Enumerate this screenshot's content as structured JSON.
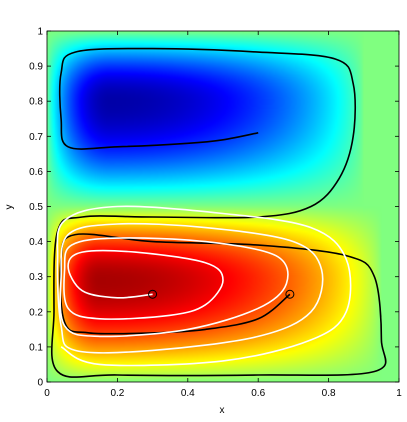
{
  "chart_data": {
    "type": "heatmap",
    "title": "",
    "xlabel": "x",
    "ylabel": "y",
    "xlim": [
      0,
      1
    ],
    "ylim": [
      0,
      1
    ],
    "x_ticks": [
      "0",
      "0.2",
      "0.4",
      "0.6",
      "0.8",
      "1"
    ],
    "y_ticks": [
      "0",
      "0.1",
      "0.2",
      "0.3",
      "0.4",
      "0.5",
      "0.6",
      "0.7",
      "0.8",
      "0.9",
      "1"
    ],
    "colormap": "jet",
    "grid": false,
    "field": {
      "positive_cell": {
        "center": [
          0.15,
          0.29
        ],
        "extent": [
          0.0,
          0.95,
          0.0,
          0.5
        ],
        "level": 1.0
      },
      "negative_cell": {
        "center": [
          0.18,
          0.8
        ],
        "extent": [
          0.0,
          0.9,
          0.5,
          1.0
        ],
        "level": -1.0
      }
    },
    "trajectories": [
      {
        "color": "#000000",
        "marker": {
          "x": 0.69,
          "y": 0.25
        },
        "points": [
          [
            0.69,
            0.25
          ],
          [
            0.6,
            0.18
          ],
          [
            0.45,
            0.15
          ],
          [
            0.3,
            0.14
          ],
          [
            0.12,
            0.14
          ],
          [
            0.05,
            0.17
          ],
          [
            0.04,
            0.35
          ],
          [
            0.08,
            0.42
          ],
          [
            0.3,
            0.4
          ],
          [
            0.6,
            0.39
          ],
          [
            0.85,
            0.36
          ],
          [
            0.93,
            0.3
          ],
          [
            0.95,
            0.12
          ],
          [
            0.93,
            0.03
          ],
          [
            0.6,
            0.02
          ],
          [
            0.2,
            0.02
          ],
          [
            0.03,
            0.03
          ],
          [
            0.02,
            0.2
          ],
          [
            0.03,
            0.43
          ],
          [
            0.1,
            0.47
          ],
          [
            0.3,
            0.47
          ],
          [
            0.6,
            0.47
          ],
          [
            0.75,
            0.5
          ],
          [
            0.83,
            0.58
          ],
          [
            0.87,
            0.7
          ],
          [
            0.87,
            0.85
          ],
          [
            0.82,
            0.92
          ],
          [
            0.6,
            0.94
          ],
          [
            0.3,
            0.95
          ],
          [
            0.08,
            0.94
          ],
          [
            0.04,
            0.88
          ],
          [
            0.04,
            0.75
          ],
          [
            0.06,
            0.67
          ],
          [
            0.2,
            0.67
          ],
          [
            0.4,
            0.68
          ],
          [
            0.5,
            0.69
          ],
          [
            0.6,
            0.71
          ]
        ]
      },
      {
        "color": "#ffffff",
        "marker": {
          "x": 0.3,
          "y": 0.25
        },
        "points": [
          [
            0.3,
            0.25
          ],
          [
            0.2,
            0.24
          ],
          [
            0.1,
            0.26
          ],
          [
            0.06,
            0.33
          ],
          [
            0.1,
            0.37
          ],
          [
            0.25,
            0.37
          ],
          [
            0.45,
            0.34
          ],
          [
            0.5,
            0.29
          ],
          [
            0.45,
            0.22
          ],
          [
            0.35,
            0.19
          ],
          [
            0.15,
            0.18
          ],
          [
            0.06,
            0.21
          ],
          [
            0.05,
            0.32
          ],
          [
            0.07,
            0.39
          ],
          [
            0.2,
            0.41
          ],
          [
            0.45,
            0.4
          ],
          [
            0.65,
            0.36
          ],
          [
            0.68,
            0.28
          ],
          [
            0.6,
            0.21
          ],
          [
            0.4,
            0.15
          ],
          [
            0.15,
            0.13
          ],
          [
            0.05,
            0.16
          ],
          [
            0.04,
            0.3
          ],
          [
            0.06,
            0.42
          ],
          [
            0.2,
            0.45
          ],
          [
            0.45,
            0.44
          ],
          [
            0.7,
            0.4
          ],
          [
            0.78,
            0.32
          ],
          [
            0.75,
            0.2
          ],
          [
            0.6,
            0.13
          ],
          [
            0.3,
            0.09
          ],
          [
            0.08,
            0.09
          ],
          [
            0.04,
            0.16
          ],
          [
            0.03,
            0.35
          ],
          [
            0.05,
            0.46
          ],
          [
            0.2,
            0.5
          ],
          [
            0.5,
            0.48
          ],
          [
            0.75,
            0.44
          ],
          [
            0.85,
            0.35
          ],
          [
            0.85,
            0.2
          ],
          [
            0.75,
            0.12
          ],
          [
            0.5,
            0.06
          ],
          [
            0.15,
            0.05
          ],
          [
            0.04,
            0.1
          ]
        ]
      }
    ]
  }
}
